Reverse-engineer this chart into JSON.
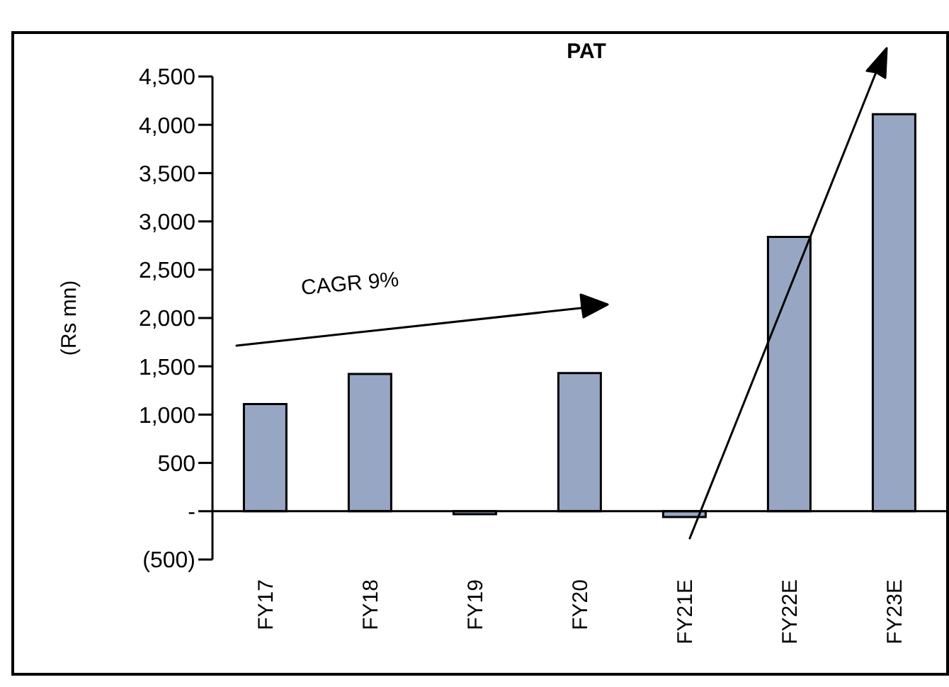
{
  "chart_data": {
    "type": "bar",
    "title": "PAT",
    "ylabel": "(Rs mn)",
    "categories": [
      "FY17",
      "FY18",
      "FY19",
      "FY20",
      "FY21E",
      "FY22E",
      "FY23E"
    ],
    "values": [
      1110,
      1420,
      -30,
      1430,
      -60,
      2840,
      4110
    ],
    "color": "#97a7c3",
    "ylim": [
      -500,
      4500
    ],
    "yticks": [
      {
        "value": -500,
        "label": "(500)"
      },
      {
        "value": 0,
        "label": "-"
      },
      {
        "value": 500,
        "label": "500"
      },
      {
        "value": 1000,
        "label": "1,000"
      },
      {
        "value": 1500,
        "label": "1,500"
      },
      {
        "value": 2000,
        "label": "2,000"
      },
      {
        "value": 2500,
        "label": "2,500"
      },
      {
        "value": 3000,
        "label": "3,000"
      },
      {
        "value": 3500,
        "label": "3,500"
      },
      {
        "value": 4000,
        "label": "4,000"
      },
      {
        "value": 4500,
        "label": "4,500"
      }
    ],
    "annotations": [
      "CAGR 9%"
    ],
    "legend": false
  }
}
